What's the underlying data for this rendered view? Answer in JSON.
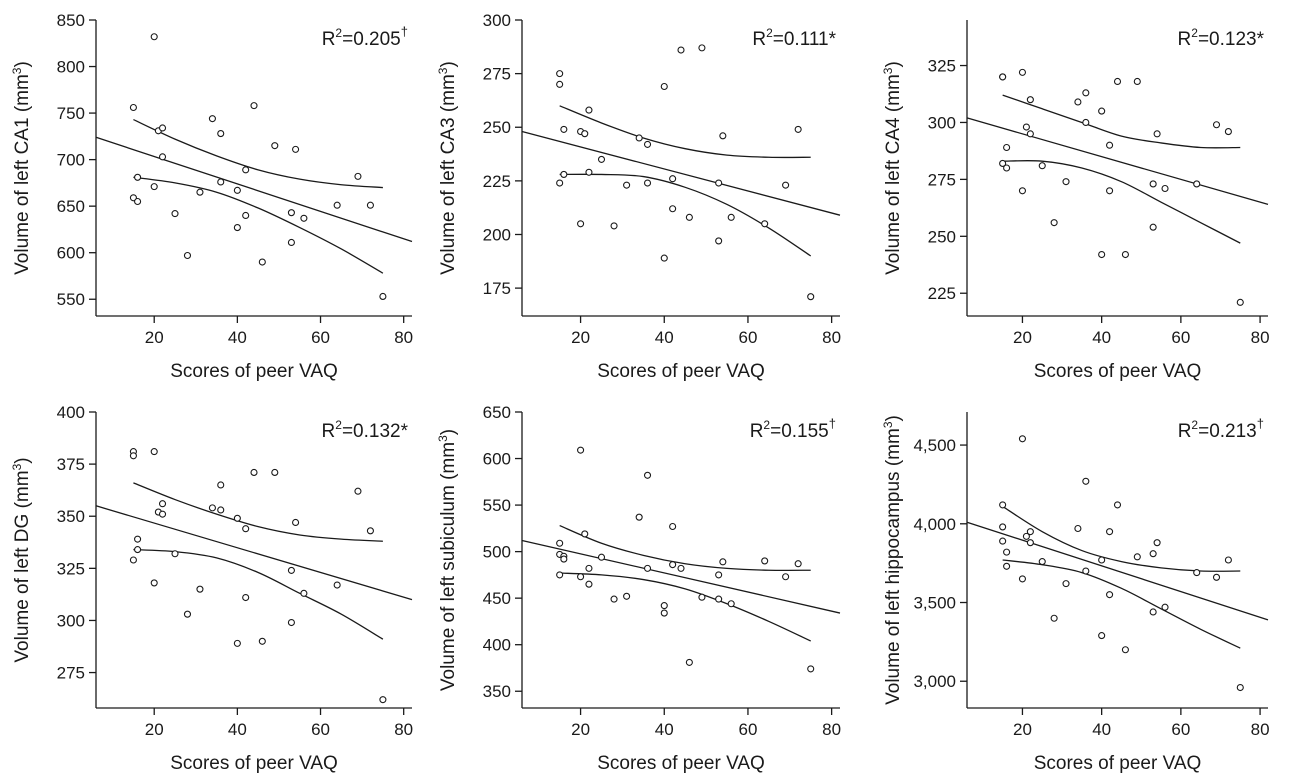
{
  "chart_data": [
    {
      "type": "scatter",
      "xlabel": "Scores of peer VAQ",
      "ylabel": "Volume of left CA1 (mm",
      "ylabel_sup": "3",
      "ylabel_end": ")",
      "r2_prefix": "R",
      "r2_sup": "2",
      "r2_value": "=0.205",
      "r2_mark": "†",
      "r2_mark_sup": true,
      "xticks": [
        20,
        40,
        60,
        80
      ],
      "xtick_labels": [
        "20",
        "40",
        "60",
        "80"
      ],
      "yticks": [
        550,
        600,
        650,
        700,
        750,
        800,
        850
      ],
      "ytick_labels": [
        "550",
        "600",
        "650",
        "700",
        "750",
        "800",
        "850"
      ],
      "xlim": [
        6,
        82
      ],
      "ylim": [
        532,
        850
      ],
      "points": [
        [
          15,
          756
        ],
        [
          15,
          659
        ],
        [
          16,
          655
        ],
        [
          16,
          681
        ],
        [
          20,
          832
        ],
        [
          20,
          671
        ],
        [
          21,
          731
        ],
        [
          22,
          734
        ],
        [
          22,
          703
        ],
        [
          25,
          642
        ],
        [
          28,
          597
        ],
        [
          31,
          665
        ],
        [
          34,
          744
        ],
        [
          36,
          728
        ],
        [
          36,
          676
        ],
        [
          40,
          667
        ],
        [
          40,
          627
        ],
        [
          42,
          689
        ],
        [
          42,
          640
        ],
        [
          44,
          758
        ],
        [
          46,
          590
        ],
        [
          49,
          715
        ],
        [
          53,
          643
        ],
        [
          53,
          611
        ],
        [
          54,
          711
        ],
        [
          56,
          637
        ],
        [
          64,
          651
        ],
        [
          69,
          682
        ],
        [
          72,
          651
        ],
        [
          75,
          553
        ]
      ],
      "fit": {
        "x_start": 6,
        "y_start": 724,
        "x_end": 82,
        "y_end": 612
      },
      "ci_upper": [
        [
          15,
          743
        ],
        [
          25,
          722
        ],
        [
          35,
          704
        ],
        [
          45,
          689
        ],
        [
          55,
          679
        ],
        [
          65,
          673
        ],
        [
          75,
          670
        ]
      ],
      "ci_lower": [
        [
          15,
          681
        ],
        [
          25,
          675
        ],
        [
          35,
          665
        ],
        [
          45,
          648
        ],
        [
          55,
          627
        ],
        [
          65,
          604
        ],
        [
          75,
          578
        ]
      ]
    },
    {
      "type": "scatter",
      "xlabel": "Scores of peer VAQ",
      "ylabel": "Volume of left CA3 (mm",
      "ylabel_sup": "3",
      "ylabel_end": ")",
      "r2_prefix": "R",
      "r2_sup": "2",
      "r2_value": "=0.111",
      "r2_mark": "*",
      "r2_mark_sup": false,
      "xticks": [
        20,
        40,
        60,
        80
      ],
      "xtick_labels": [
        "20",
        "40",
        "60",
        "80"
      ],
      "yticks": [
        175,
        200,
        225,
        250,
        275,
        300
      ],
      "ytick_labels": [
        "175",
        "200",
        "225",
        "250",
        "275",
        "300"
      ],
      "xlim": [
        6,
        82
      ],
      "ylim": [
        162,
        300
      ],
      "points": [
        [
          15,
          275
        ],
        [
          15,
          270
        ],
        [
          15,
          224
        ],
        [
          16,
          249
        ],
        [
          16,
          228
        ],
        [
          20,
          205
        ],
        [
          20,
          248
        ],
        [
          21,
          247
        ],
        [
          22,
          258
        ],
        [
          22,
          229
        ],
        [
          25,
          235
        ],
        [
          28,
          204
        ],
        [
          31,
          223
        ],
        [
          34,
          245
        ],
        [
          36,
          242
        ],
        [
          36,
          224
        ],
        [
          40,
          269
        ],
        [
          40,
          189
        ],
        [
          42,
          212
        ],
        [
          42,
          226
        ],
        [
          44,
          286
        ],
        [
          46,
          208
        ],
        [
          49,
          287
        ],
        [
          53,
          224
        ],
        [
          53,
          197
        ],
        [
          54,
          246
        ],
        [
          56,
          208
        ],
        [
          64,
          205
        ],
        [
          69,
          223
        ],
        [
          72,
          249
        ],
        [
          75,
          171
        ]
      ],
      "fit": {
        "x_start": 6,
        "y_start": 248,
        "x_end": 82,
        "y_end": 209
      },
      "ci_upper": [
        [
          15,
          260
        ],
        [
          25,
          252
        ],
        [
          35,
          245
        ],
        [
          45,
          240
        ],
        [
          55,
          237
        ],
        [
          65,
          236
        ],
        [
          75,
          236
        ]
      ],
      "ci_lower": [
        [
          15,
          228
        ],
        [
          25,
          228
        ],
        [
          35,
          227
        ],
        [
          45,
          222
        ],
        [
          55,
          214
        ],
        [
          65,
          203
        ],
        [
          75,
          190
        ]
      ]
    },
    {
      "type": "scatter",
      "xlabel": "Scores of peer VAQ",
      "ylabel": "Volume of left CA4 (mm",
      "ylabel_sup": "3",
      "ylabel_end": ")",
      "r2_prefix": "R",
      "r2_sup": "2",
      "r2_value": "=0.123",
      "r2_mark": "*",
      "r2_mark_sup": false,
      "xticks": [
        20,
        40,
        60,
        80
      ],
      "xtick_labels": [
        "20",
        "40",
        "60",
        "80"
      ],
      "yticks": [
        225,
        250,
        275,
        300,
        325
      ],
      "ytick_labels": [
        "225",
        "250",
        "275",
        "300",
        "325"
      ],
      "xlim": [
        6,
        82
      ],
      "ylim": [
        215,
        345
      ],
      "points": [
        [
          15,
          320
        ],
        [
          15,
          320
        ],
        [
          15,
          282
        ],
        [
          16,
          280
        ],
        [
          16,
          289
        ],
        [
          20,
          322
        ],
        [
          20,
          270
        ],
        [
          21,
          298
        ],
        [
          22,
          310
        ],
        [
          22,
          295
        ],
        [
          25,
          281
        ],
        [
          28,
          256
        ],
        [
          31,
          274
        ],
        [
          34,
          309
        ],
        [
          36,
          313
        ],
        [
          36,
          300
        ],
        [
          40,
          305
        ],
        [
          40,
          242
        ],
        [
          42,
          290
        ],
        [
          42,
          270
        ],
        [
          44,
          318
        ],
        [
          46,
          242
        ],
        [
          49,
          318
        ],
        [
          53,
          273
        ],
        [
          53,
          254
        ],
        [
          54,
          295
        ],
        [
          56,
          271
        ],
        [
          64,
          273
        ],
        [
          69,
          299
        ],
        [
          72,
          296
        ],
        [
          75,
          221
        ]
      ],
      "fit": {
        "x_start": 6,
        "y_start": 302,
        "x_end": 82,
        "y_end": 264
      },
      "ci_upper": [
        [
          15,
          312
        ],
        [
          25,
          306
        ],
        [
          35,
          300
        ],
        [
          45,
          294
        ],
        [
          55,
          291
        ],
        [
          65,
          289
        ],
        [
          75,
          289
        ]
      ],
      "ci_lower": [
        [
          15,
          283
        ],
        [
          25,
          283
        ],
        [
          35,
          280
        ],
        [
          45,
          274
        ],
        [
          55,
          265
        ],
        [
          65,
          256
        ],
        [
          75,
          247
        ]
      ]
    },
    {
      "type": "scatter",
      "xlabel": "Scores of peer VAQ",
      "ylabel": "Volume of left DG (mm",
      "ylabel_sup": "3",
      "ylabel_end": ")",
      "r2_prefix": "R",
      "r2_sup": "2",
      "r2_value": "=0.132",
      "r2_mark": "*",
      "r2_mark_sup": false,
      "xticks": [
        20,
        40,
        60,
        80
      ],
      "xtick_labels": [
        "20",
        "40",
        "60",
        "80"
      ],
      "yticks": [
        275,
        300,
        325,
        350,
        375,
        400
      ],
      "ytick_labels": [
        "275",
        "300",
        "325",
        "350",
        "375",
        "400"
      ],
      "xlim": [
        6,
        82
      ],
      "ylim": [
        258,
        400
      ],
      "points": [
        [
          15,
          381
        ],
        [
          15,
          379
        ],
        [
          15,
          329
        ],
        [
          16,
          339
        ],
        [
          16,
          334
        ],
        [
          20,
          381
        ],
        [
          20,
          318
        ],
        [
          21,
          352
        ],
        [
          22,
          356
        ],
        [
          22,
          351
        ],
        [
          25,
          332
        ],
        [
          28,
          303
        ],
        [
          31,
          315
        ],
        [
          34,
          354
        ],
        [
          36,
          365
        ],
        [
          36,
          353
        ],
        [
          40,
          349
        ],
        [
          40,
          289
        ],
        [
          42,
          344
        ],
        [
          42,
          311
        ],
        [
          44,
          371
        ],
        [
          46,
          290
        ],
        [
          49,
          371
        ],
        [
          53,
          324
        ],
        [
          53,
          299
        ],
        [
          54,
          347
        ],
        [
          56,
          313
        ],
        [
          64,
          317
        ],
        [
          69,
          362
        ],
        [
          72,
          343
        ],
        [
          75,
          262
        ]
      ],
      "fit": {
        "x_start": 6,
        "y_start": 355,
        "x_end": 82,
        "y_end": 310
      },
      "ci_upper": [
        [
          15,
          366
        ],
        [
          25,
          358
        ],
        [
          35,
          351
        ],
        [
          45,
          345
        ],
        [
          55,
          341
        ],
        [
          65,
          339
        ],
        [
          75,
          338
        ]
      ],
      "ci_lower": [
        [
          15,
          334
        ],
        [
          25,
          333
        ],
        [
          35,
          330
        ],
        [
          45,
          323
        ],
        [
          55,
          313
        ],
        [
          65,
          303
        ],
        [
          75,
          291
        ]
      ]
    },
    {
      "type": "scatter",
      "xlabel": "Scores of peer VAQ",
      "ylabel": "Volume of left subiculum (mm",
      "ylabel_sup": "3",
      "ylabel_end": ")",
      "r2_prefix": "R",
      "r2_sup": "2",
      "r2_value": "=0.155",
      "r2_mark": "†",
      "r2_mark_sup": true,
      "xticks": [
        20,
        40,
        60,
        80
      ],
      "xtick_labels": [
        "20",
        "40",
        "60",
        "80"
      ],
      "yticks": [
        350,
        400,
        450,
        500,
        550,
        600,
        650
      ],
      "ytick_labels": [
        "350",
        "400",
        "450",
        "500",
        "550",
        "600",
        "650"
      ],
      "xlim": [
        6,
        82
      ],
      "ylim": [
        332,
        650
      ],
      "points": [
        [
          15,
          509
        ],
        [
          15,
          497
        ],
        [
          15,
          475
        ],
        [
          16,
          495
        ],
        [
          16,
          492
        ],
        [
          20,
          609
        ],
        [
          20,
          473
        ],
        [
          21,
          519
        ],
        [
          22,
          465
        ],
        [
          22,
          482
        ],
        [
          25,
          494
        ],
        [
          28,
          449
        ],
        [
          31,
          452
        ],
        [
          34,
          537
        ],
        [
          36,
          582
        ],
        [
          36,
          482
        ],
        [
          40,
          442
        ],
        [
          40,
          434
        ],
        [
          42,
          527
        ],
        [
          42,
          486
        ],
        [
          44,
          482
        ],
        [
          46,
          381
        ],
        [
          49,
          451
        ],
        [
          53,
          475
        ],
        [
          53,
          449
        ],
        [
          54,
          489
        ],
        [
          56,
          444
        ],
        [
          64,
          490
        ],
        [
          69,
          473
        ],
        [
          72,
          487
        ],
        [
          75,
          374
        ]
      ],
      "fit": {
        "x_start": 6,
        "y_start": 512,
        "x_end": 82,
        "y_end": 434
      },
      "ci_upper": [
        [
          15,
          528
        ],
        [
          25,
          509
        ],
        [
          35,
          496
        ],
        [
          45,
          487
        ],
        [
          55,
          482
        ],
        [
          65,
          480
        ],
        [
          75,
          480
        ]
      ],
      "ci_lower": [
        [
          15,
          477
        ],
        [
          25,
          475
        ],
        [
          35,
          470
        ],
        [
          45,
          460
        ],
        [
          55,
          444
        ],
        [
          65,
          425
        ],
        [
          75,
          404
        ]
      ]
    },
    {
      "type": "scatter",
      "xlabel": "Scores of peer VAQ",
      "ylabel": "Volume of left hippocampus (mm",
      "ylabel_sup": "3",
      "ylabel_end": ")",
      "r2_prefix": "R",
      "r2_sup": "2",
      "r2_value": "=0.213",
      "r2_mark": "†",
      "r2_mark_sup": true,
      "xticks": [
        20,
        40,
        60,
        80
      ],
      "xtick_labels": [
        "20",
        "40",
        "60",
        "80"
      ],
      "yticks": [
        3000,
        3500,
        4000,
        4500
      ],
      "ytick_labels": [
        "3,000",
        "3,500",
        "4,000",
        "4,500"
      ],
      "xlim": [
        6,
        82
      ],
      "ylim": [
        2830,
        4710
      ],
      "points": [
        [
          15,
          4120
        ],
        [
          15,
          3980
        ],
        [
          15,
          3890
        ],
        [
          16,
          3820
        ],
        [
          16,
          3730
        ],
        [
          20,
          4540
        ],
        [
          20,
          3650
        ],
        [
          21,
          3920
        ],
        [
          22,
          3950
        ],
        [
          22,
          3880
        ],
        [
          25,
          3760
        ],
        [
          28,
          3400
        ],
        [
          31,
          3620
        ],
        [
          34,
          3970
        ],
        [
          36,
          4270
        ],
        [
          36,
          3700
        ],
        [
          40,
          3770
        ],
        [
          40,
          3290
        ],
        [
          42,
          3950
        ],
        [
          42,
          3550
        ],
        [
          44,
          4120
        ],
        [
          46,
          3200
        ],
        [
          49,
          3790
        ],
        [
          53,
          3440
        ],
        [
          53,
          3810
        ],
        [
          54,
          3880
        ],
        [
          56,
          3470
        ],
        [
          64,
          3690
        ],
        [
          69,
          3660
        ],
        [
          72,
          3770
        ],
        [
          75,
          2960
        ]
      ],
      "fit": {
        "x_start": 6,
        "y_start": 4010,
        "x_end": 82,
        "y_end": 3390
      },
      "ci_upper": [
        [
          15,
          4110
        ],
        [
          25,
          3950
        ],
        [
          35,
          3830
        ],
        [
          45,
          3760
        ],
        [
          55,
          3720
        ],
        [
          65,
          3700
        ],
        [
          75,
          3700
        ]
      ],
      "ci_lower": [
        [
          15,
          3770
        ],
        [
          25,
          3740
        ],
        [
          35,
          3690
        ],
        [
          45,
          3590
        ],
        [
          55,
          3460
        ],
        [
          65,
          3330
        ],
        [
          75,
          3210
        ]
      ]
    }
  ]
}
